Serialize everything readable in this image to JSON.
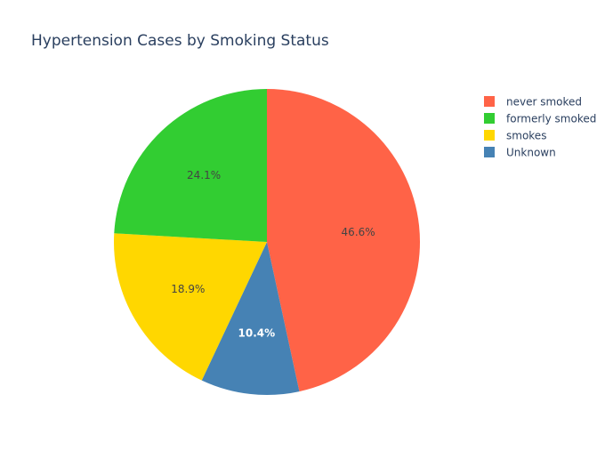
{
  "chart_data": {
    "type": "pie",
    "title": "Hypertension Cases by Smoking Status",
    "legend_position": "top-right",
    "slices": [
      {
        "label": "never smoked",
        "percent": 46.6,
        "percent_text": "46.6%",
        "color": "#FF6347",
        "text_color": "#444444"
      },
      {
        "label": "Unknown",
        "percent": 10.4,
        "percent_text": "10.4%",
        "color": "#4682B4",
        "text_color": "#ffffff"
      },
      {
        "label": "smokes",
        "percent": 18.9,
        "percent_text": "18.9%",
        "color": "#FFD700",
        "text_color": "#444444"
      },
      {
        "label": "formerly smoked",
        "percent": 24.1,
        "percent_text": "24.1%",
        "color": "#32CD32",
        "text_color": "#444444"
      }
    ],
    "legend_order": [
      "never smoked",
      "formerly smoked",
      "smokes",
      "Unknown"
    ]
  }
}
